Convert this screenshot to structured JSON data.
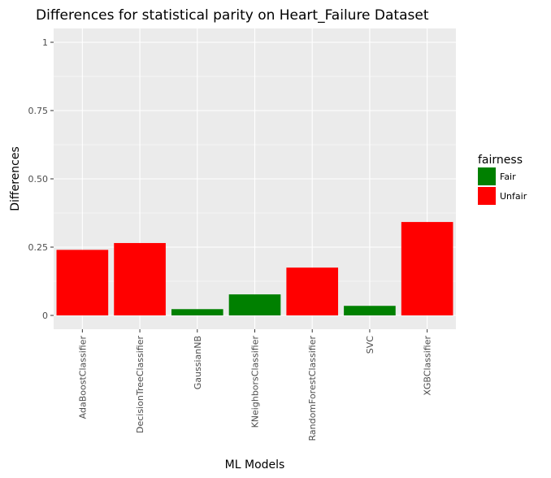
{
  "chart_data": {
    "type": "bar",
    "title": "Differences for statistical parity on Heart_Failure Dataset",
    "xlabel": "ML Models",
    "ylabel": "Differences",
    "ylim": [
      0,
      1.03
    ],
    "yticks": [
      {
        "value": 0,
        "label": "0"
      },
      {
        "value": 0.25,
        "label": "0.25"
      },
      {
        "value": 0.5,
        "label": "0.50"
      },
      {
        "value": 0.75,
        "label": "0.75"
      },
      {
        "value": 1,
        "label": "1"
      }
    ],
    "categories": [
      "AdaBoostClassifier",
      "DecisionTreeClassifier",
      "GaussianNB",
      "KNeighborsClassifier",
      "RandomForestClassifier",
      "SVC",
      "XGBClassifier"
    ],
    "values": [
      0.24,
      0.265,
      0.023,
      0.077,
      0.175,
      0.035,
      0.342
    ],
    "fairness": [
      "Unfair",
      "Unfair",
      "Fair",
      "Fair",
      "Unfair",
      "Fair",
      "Unfair"
    ],
    "legend": {
      "title": "fairness",
      "position": "right",
      "entries": [
        {
          "label": "Fair",
          "color": "#008000"
        },
        {
          "label": "Unfair",
          "color": "#ff0000"
        }
      ]
    },
    "grid": true
  },
  "colors": {
    "panel_background": "#ebebeb",
    "grid_major": "#ffffff",
    "fair": "#008000",
    "unfair": "#ff0000"
  }
}
